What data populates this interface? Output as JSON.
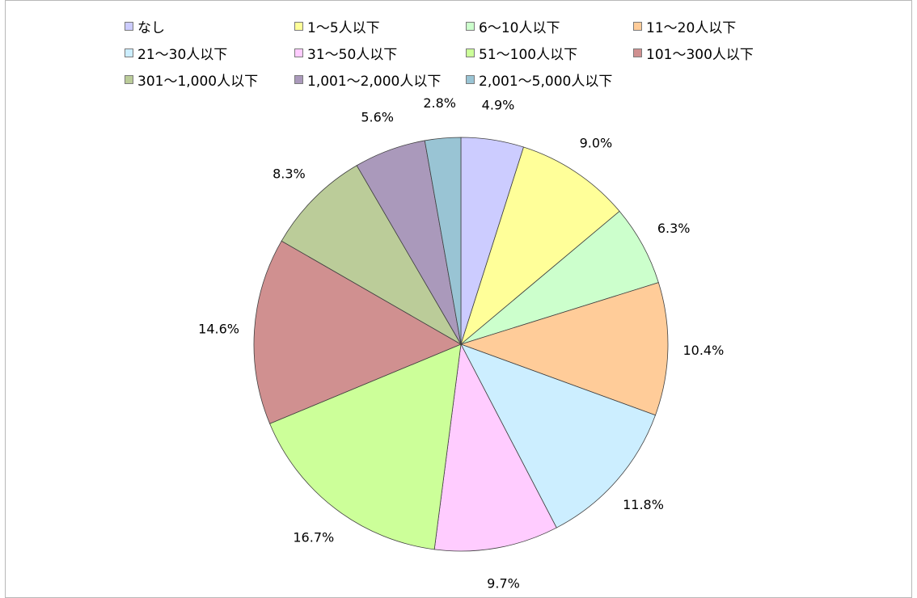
{
  "chart_data": {
    "type": "pie",
    "title": "",
    "categories": [
      "なし",
      "1〜5人以下",
      "6〜10人以下",
      "11〜20人以下",
      "21〜30人以下",
      "31〜50人以下",
      "51〜100人以下",
      "101〜300人以下",
      "301〜1,000人以下",
      "1,001〜2,000人以下",
      "2,001〜5,000人以下"
    ],
    "values": [
      4.9,
      9.0,
      6.3,
      10.4,
      11.8,
      9.7,
      16.7,
      14.6,
      8.3,
      5.6,
      2.8
    ],
    "labels": [
      "4.9%",
      "9.0%",
      "6.3%",
      "10.4%",
      "11.8%",
      "9.7%",
      "16.7%",
      "14.6%",
      "8.3%",
      "5.6%",
      "2.8%"
    ],
    "colors": [
      "#ccccff",
      "#ffff99",
      "#ccffcc",
      "#ffcc99",
      "#cceeff",
      "#ffccff",
      "#ccff99",
      "#d09090",
      "#bbcc99",
      "#aa99bb",
      "#99c4d4"
    ],
    "start_angle": "12 o'clock, clockwise",
    "legend_position": "top"
  }
}
